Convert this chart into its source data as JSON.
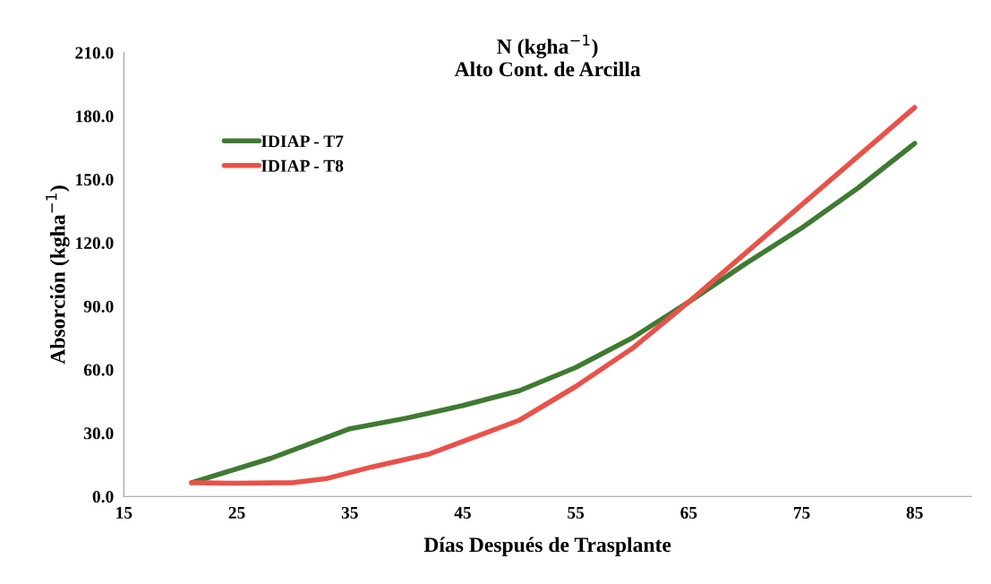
{
  "chart_data": {
    "type": "line",
    "title": "N (kgha$^{−1}$)\nAlto Cont. de Arcilla",
    "xlabel": "Días Después de Trasplante",
    "ylabel": "Absorción (kgha$^{−1}$)",
    "series": [
      {
        "name": "IDIAP - T7",
        "color": "#3f7a32",
        "x": [
          21,
          28,
          35,
          40,
          45,
          50,
          55,
          60,
          65,
          70,
          75,
          80,
          85
        ],
        "values": [
          6.5,
          18,
          32,
          37,
          43,
          50,
          61,
          75,
          92,
          110,
          127,
          146,
          167
        ]
      },
      {
        "name": "IDIAP - T8",
        "color": "#e8524a",
        "x": [
          21,
          25,
          30,
          33,
          37,
          42,
          45,
          50,
          55,
          60,
          65,
          70,
          75,
          80,
          85
        ],
        "values": [
          6.5,
          6.2,
          6.5,
          8.5,
          14,
          20,
          26,
          36,
          52,
          70,
          92,
          115,
          138,
          161,
          184
        ]
      }
    ],
    "xlim": [
      15,
      90
    ],
    "xticks": [
      15,
      25,
      35,
      45,
      55,
      65,
      75,
      85
    ],
    "ylim": [
      0,
      210
    ],
    "yticks": [
      {
        "value": 0,
        "label": "0.0"
      },
      {
        "value": 30,
        "label": "30.0"
      },
      {
        "value": 60,
        "label": "60.0"
      },
      {
        "value": 90,
        "label": "90.0"
      },
      {
        "value": 120,
        "label": "120.0"
      },
      {
        "value": 150,
        "label": "150.0"
      },
      {
        "value": 180,
        "label": "180.0"
      },
      {
        "value": 210,
        "label": "210.0"
      }
    ],
    "grid": false,
    "legend": "top left",
    "line_style": "solid",
    "marker": "none"
  }
}
